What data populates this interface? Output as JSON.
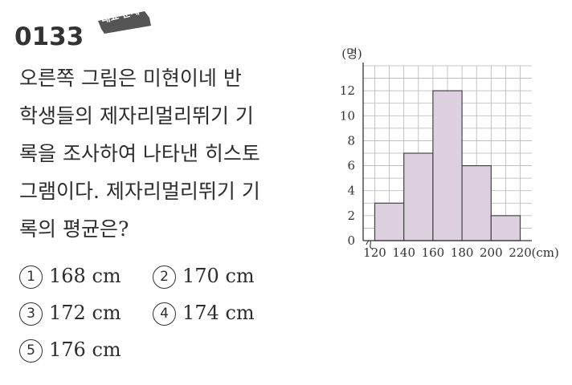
{
  "problem": {
    "number": "0133",
    "badge": "대표 문제",
    "question_lines": [
      "오른쪽 그림은 미현이네 반",
      "학생들의 제자리멀리뛰기 기",
      "록을 조사하여 나타낸 히스토",
      "그램이다. 제자리멀리뛰기 기",
      "록의 평균은?"
    ],
    "choices": [
      {
        "num": "1",
        "text": "168 cm"
      },
      {
        "num": "2",
        "text": "170 cm"
      },
      {
        "num": "3",
        "text": "172 cm"
      },
      {
        "num": "4",
        "text": "174 cm"
      },
      {
        "num": "5",
        "text": "176 cm"
      }
    ]
  },
  "chart_data": {
    "type": "bar",
    "subtype": "histogram",
    "bin_edges": [
      120,
      140,
      160,
      180,
      200,
      220
    ],
    "values": [
      3,
      7,
      12,
      6,
      2
    ],
    "x_tick_labels": [
      "120",
      "140",
      "160",
      "180",
      "200",
      "220"
    ],
    "x_unit": "(cm)",
    "y_unit": "(명)",
    "y_ticks": [
      0,
      2,
      4,
      6,
      8,
      10,
      12
    ],
    "ylim": [
      0,
      14
    ],
    "xlim": [
      112,
      228
    ],
    "grid": true,
    "axis_break": true,
    "bar_color": "#ddd0df"
  }
}
